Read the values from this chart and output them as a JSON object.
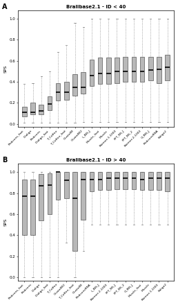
{
  "panel_A": {
    "title": "Bralibase2.1 - ID < 40",
    "ylabel": "SPS",
    "categories": [
      "Probcons_fast",
      "Dialign",
      "Probcons",
      "Dialign_fast",
      "T_Coffee",
      "T_Coffee_fast",
      "ClustalW",
      "ClustalW2",
      "L_INS_J",
      "Muscle_fast",
      "Muscle",
      "Pairmer-1-1000",
      "FFT_NS_J",
      "FFT_NS_2",
      "Pairmer-2-1000",
      "G_INS_J",
      "ProbconsRNA",
      "Kalign2"
    ],
    "boxes": [
      {
        "q1": 0.07,
        "median": 0.11,
        "q3": 0.16,
        "whislo": 0.01,
        "whishi": 0.38
      },
      {
        "q1": 0.09,
        "median": 0.11,
        "q3": 0.2,
        "whislo": 0.01,
        "whishi": 0.39
      },
      {
        "q1": 0.09,
        "median": 0.12,
        "q3": 0.18,
        "whislo": 0.01,
        "whishi": 0.45
      },
      {
        "q1": 0.13,
        "median": 0.19,
        "q3": 0.26,
        "whislo": 0.01,
        "whishi": 0.5
      },
      {
        "q1": 0.22,
        "median": 0.3,
        "q3": 0.39,
        "whislo": 0.01,
        "whishi": 0.68
      },
      {
        "q1": 0.23,
        "median": 0.3,
        "q3": 0.4,
        "whislo": 0.01,
        "whishi": 0.75
      },
      {
        "q1": 0.27,
        "median": 0.35,
        "q3": 0.47,
        "whislo": 0.01,
        "whishi": 0.96
      },
      {
        "q1": 0.29,
        "median": 0.35,
        "q3": 0.49,
        "whislo": 0.02,
        "whishi": 0.92
      },
      {
        "q1": 0.36,
        "median": 0.46,
        "q3": 0.61,
        "whislo": 0.02,
        "whishi": 1.0
      },
      {
        "q1": 0.38,
        "median": 0.48,
        "q3": 0.63,
        "whislo": 0.02,
        "whishi": 1.0
      },
      {
        "q1": 0.38,
        "median": 0.48,
        "q3": 0.63,
        "whislo": 0.02,
        "whishi": 1.0
      },
      {
        "q1": 0.39,
        "median": 0.5,
        "q3": 0.63,
        "whislo": 0.02,
        "whishi": 1.0
      },
      {
        "q1": 0.4,
        "median": 0.5,
        "q3": 0.64,
        "whislo": 0.02,
        "whishi": 1.0
      },
      {
        "q1": 0.4,
        "median": 0.5,
        "q3": 0.64,
        "whislo": 0.02,
        "whishi": 1.0
      },
      {
        "q1": 0.4,
        "median": 0.5,
        "q3": 0.64,
        "whislo": 0.02,
        "whishi": 1.0
      },
      {
        "q1": 0.41,
        "median": 0.51,
        "q3": 0.64,
        "whislo": 0.02,
        "whishi": 1.0
      },
      {
        "q1": 0.39,
        "median": 0.52,
        "q3": 0.64,
        "whislo": 0.02,
        "whishi": 1.0
      },
      {
        "q1": 0.41,
        "median": 0.54,
        "q3": 0.66,
        "whislo": 0.02,
        "whishi": 1.0
      }
    ]
  },
  "panel_B": {
    "title": "Bralibase2.1 - ID > 40",
    "ylabel": "SPS",
    "categories": [
      "Probcons_fast",
      "Probcons",
      "Dialign",
      "Dialign_fast",
      "T_Coffee",
      "ClustalW2",
      "T_Coffee_fast",
      "ClustalW",
      "ProbconsRNA",
      "L_INS_J",
      "Pairmer-2-1000",
      "FFT_NS_J",
      "FFT_NS_2",
      "G_INS_J",
      "Muscle_fast",
      "Muscle",
      "Pairmer-1-1000",
      "Kalign2"
    ],
    "boxes": [
      {
        "q1": 0.4,
        "median": 0.77,
        "q3": 0.93,
        "whislo": 0.0,
        "whishi": 1.0
      },
      {
        "q1": 0.4,
        "median": 0.77,
        "q3": 0.93,
        "whislo": 0.0,
        "whishi": 1.0
      },
      {
        "q1": 0.54,
        "median": 0.87,
        "q3": 0.98,
        "whislo": 0.0,
        "whishi": 1.0
      },
      {
        "q1": 0.6,
        "median": 0.88,
        "q3": 0.99,
        "whislo": 0.0,
        "whishi": 1.0
      },
      {
        "q1": 0.74,
        "median": 1.0,
        "q3": 1.0,
        "whislo": 0.0,
        "whishi": 1.0
      },
      {
        "q1": 0.75,
        "median": 0.92,
        "q3": 1.0,
        "whislo": 0.33,
        "whishi": 1.0
      },
      {
        "q1": 0.25,
        "median": 0.75,
        "q3": 1.0,
        "whislo": 0.0,
        "whishi": 1.0
      },
      {
        "q1": 0.55,
        "median": 0.93,
        "q3": 1.0,
        "whislo": 0.25,
        "whishi": 1.0
      },
      {
        "q1": 0.82,
        "median": 0.93,
        "q3": 1.0,
        "whislo": 0.5,
        "whishi": 1.0
      },
      {
        "q1": 0.83,
        "median": 0.93,
        "q3": 1.0,
        "whislo": 0.5,
        "whishi": 1.0
      },
      {
        "q1": 0.83,
        "median": 0.94,
        "q3": 1.0,
        "whislo": 0.5,
        "whishi": 1.0
      },
      {
        "q1": 0.84,
        "median": 0.94,
        "q3": 1.0,
        "whislo": 0.5,
        "whishi": 1.0
      },
      {
        "q1": 0.84,
        "median": 0.94,
        "q3": 1.0,
        "whislo": 0.5,
        "whishi": 1.0
      },
      {
        "q1": 0.84,
        "median": 0.94,
        "q3": 1.0,
        "whislo": 0.5,
        "whishi": 1.0
      },
      {
        "q1": 0.83,
        "median": 0.93,
        "q3": 1.0,
        "whislo": 0.5,
        "whishi": 1.0
      },
      {
        "q1": 0.83,
        "median": 0.94,
        "q3": 1.0,
        "whislo": 0.5,
        "whishi": 1.0
      },
      {
        "q1": 0.83,
        "median": 0.94,
        "q3": 1.0,
        "whislo": 0.5,
        "whishi": 1.0
      },
      {
        "q1": 0.82,
        "median": 0.94,
        "q3": 1.0,
        "whislo": 0.5,
        "whishi": 1.0
      }
    ]
  },
  "box_facecolor": "#b8b8b8",
  "box_edgecolor": "#555555",
  "median_color": "#000000",
  "whisker_color": "#888888",
  "background_color": "#ffffff",
  "label_A": "A",
  "label_B": "B"
}
